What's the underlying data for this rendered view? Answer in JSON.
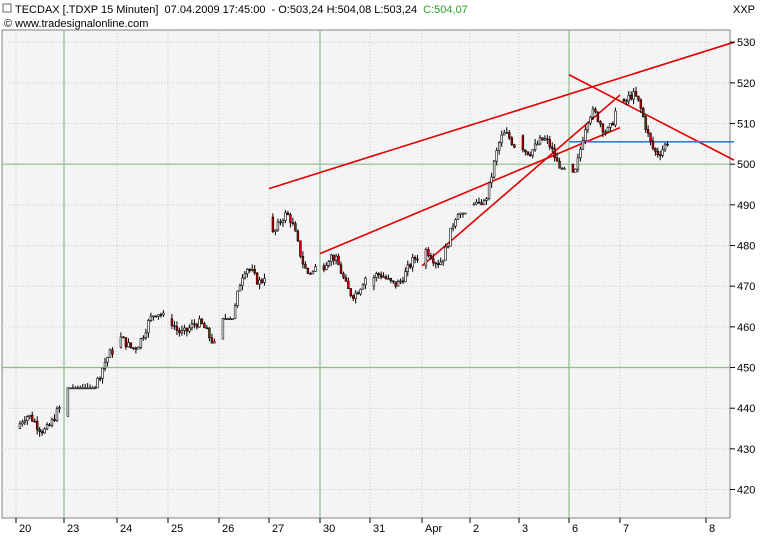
{
  "header": {
    "instrument": "TECDAX [.TDXP  15 Minuten]",
    "datetime": "07.04.2009 17:45:00",
    "ohl": "- O:503,24 H:504,08 L:503,24",
    "close": "C:504,07",
    "symbol_code": "XXP",
    "copyright": "© www.tradesignalonline.com"
  },
  "colors": {
    "panel_bg": "#f4f4f4",
    "grid_minor": "#c8c8c8",
    "grid_major": "#8fbc8f",
    "up_candle": "#ffffff",
    "down_candle": "#cc0000",
    "candle_outline": "#000000",
    "trendline": "#e00000",
    "support_line": "#2a7fd4",
    "close_text": "#2aa02a"
  },
  "chart_data": {
    "type": "candlestick",
    "title": "TECDAX [.TDXP  15 Minuten]",
    "ylim": [
      413,
      533
    ],
    "y_ticks": [
      420,
      430,
      440,
      450,
      460,
      470,
      480,
      490,
      500,
      510,
      520,
      530
    ],
    "x_tick_labels": [
      "20",
      "23",
      "24",
      "25",
      "26",
      "27",
      "30",
      "31",
      "Apr",
      "2",
      "3",
      "6",
      "7",
      "8"
    ],
    "grid": true,
    "last_price": 504.07,
    "sessions": [
      {
        "label": "20",
        "open": 435,
        "close": 438,
        "low": 432,
        "high": 443
      },
      {
        "label": "23",
        "open": 438,
        "close": 452,
        "low": 445,
        "high": 455
      },
      {
        "label": "24",
        "open": 455,
        "close": 462,
        "low": 453,
        "high": 465
      },
      {
        "label": "25",
        "open": 462,
        "close": 457,
        "low": 456,
        "high": 466
      },
      {
        "label": "26",
        "open": 457,
        "close": 478,
        "low": 462,
        "high": 487
      },
      {
        "label": "27",
        "open": 487,
        "close": 476,
        "low": 473,
        "high": 494
      },
      {
        "label": "30",
        "open": 475,
        "close": 470,
        "low": 462,
        "high": 478
      },
      {
        "label": "31",
        "open": 470,
        "close": 475,
        "low": 469,
        "high": 479
      },
      {
        "label": "Apr",
        "open": 475,
        "close": 487,
        "low": 471,
        "high": 488
      },
      {
        "label": "2",
        "open": 490,
        "close": 507,
        "low": 490,
        "high": 511
      },
      {
        "label": "3",
        "open": 507,
        "close": 500,
        "low": 499,
        "high": 512
      },
      {
        "label": "6",
        "open": 500,
        "close": 516,
        "low": 498,
        "high": 522
      },
      {
        "label": "7",
        "open": 516,
        "close": 504.07,
        "low": 500,
        "high": 519
      }
    ],
    "trendlines": [
      {
        "color": "red",
        "from": {
          "date": "27",
          "price": 494
        },
        "to": {
          "date": "8",
          "price": 530
        }
      },
      {
        "color": "red",
        "from": {
          "date": "30",
          "price": 478
        },
        "to": {
          "date": "7",
          "price": 509
        }
      },
      {
        "color": "red",
        "from": {
          "date": "Apr",
          "price": 475
        },
        "to": {
          "date": "7",
          "price": 517
        }
      },
      {
        "color": "red",
        "from": {
          "date": "6",
          "price": 522
        },
        "to": {
          "date": "8",
          "price": 501
        }
      },
      {
        "color": "blue",
        "from": {
          "date": "6",
          "price": 505.5
        },
        "to": {
          "date": "8",
          "price": 505.5
        }
      }
    ]
  }
}
